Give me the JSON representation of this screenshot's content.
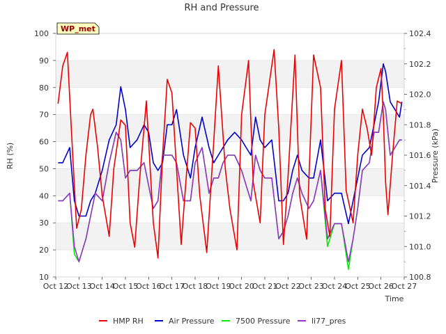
{
  "chart_data": {
    "type": "line",
    "title": "RH and Pressure",
    "xlabel": "Time",
    "ylabel_left": "RH (%)",
    "ylabel_right": "Pressure (kPa)",
    "site_label": "WP_met",
    "grid": "horizontal bands",
    "legend_position": "bottom-center",
    "x_ticks": [
      "Oct 12",
      "Oct 13",
      "Oct 14",
      "Oct 15",
      "Oct 16",
      "Oct 17",
      "Oct 18",
      "Oct 19",
      "Oct 20",
      "Oct 21",
      "Oct 22",
      "Oct 23",
      "Oct 24",
      "Oct 25",
      "Oct 26",
      "Oct 27"
    ],
    "xlim": [
      0,
      15
    ],
    "ylim_left": [
      10,
      100
    ],
    "yticks_left": [
      "10",
      "20",
      "30",
      "40",
      "50",
      "60",
      "70",
      "80",
      "90",
      "100"
    ],
    "ylim_right": [
      100.8,
      102.4
    ],
    "yticks_right": [
      "100.8",
      "101.0",
      "101.2",
      "101.4",
      "101.6",
      "101.8",
      "102.0",
      "102.2",
      "102.4"
    ],
    "series": [
      {
        "name": "HMP RH",
        "axis": "left",
        "color": "#ee0000",
        "x": [
          0.1,
          0.3,
          0.5,
          0.7,
          0.9,
          1.1,
          1.3,
          1.5,
          1.6,
          1.8,
          2.0,
          2.3,
          2.5,
          2.8,
          3.0,
          3.2,
          3.4,
          3.6,
          3.9,
          4.0,
          4.2,
          4.4,
          4.6,
          4.8,
          5.0,
          5.2,
          5.4,
          5.6,
          5.8,
          6.0,
          6.2,
          6.5,
          6.8,
          7.0,
          7.3,
          7.5,
          7.8,
          8.0,
          8.3,
          8.5,
          8.8,
          9.0,
          9.4,
          9.6,
          9.8,
          10.0,
          10.3,
          10.5,
          10.8,
          11.1,
          11.4,
          11.6,
          11.8,
          12.0,
          12.3,
          12.5,
          12.8,
          13.0,
          13.2,
          13.4,
          13.6,
          13.8,
          14.0,
          14.1,
          14.2,
          14.3,
          14.5,
          14.7,
          14.9
        ],
        "y": [
          74,
          88,
          93,
          60,
          28,
          35,
          55,
          70,
          72,
          58,
          40,
          25,
          50,
          68,
          66,
          30,
          21,
          45,
          75,
          60,
          30,
          17,
          55,
          83,
          78,
          50,
          22,
          45,
          67,
          65,
          40,
          19,
          60,
          88,
          50,
          35,
          20,
          70,
          90,
          45,
          30,
          70,
          94,
          65,
          22,
          47,
          92,
          40,
          24,
          92,
          80,
          35,
          25,
          72,
          90,
          42,
          30,
          55,
          72,
          65,
          55,
          80,
          87,
          70,
          45,
          33,
          55,
          75,
          74
        ]
      },
      {
        "name": "Air Pressure",
        "axis": "right",
        "color": "#0000cc",
        "x": [
          0.1,
          0.3,
          0.6,
          0.8,
          1.0,
          1.3,
          1.5,
          1.7,
          2.0,
          2.3,
          2.6,
          2.8,
          3.0,
          3.2,
          3.5,
          3.8,
          4.0,
          4.2,
          4.4,
          4.6,
          4.8,
          5.0,
          5.2,
          5.5,
          5.8,
          6.0,
          6.3,
          6.6,
          6.8,
          7.0,
          7.2,
          7.4,
          7.7,
          8.0,
          8.2,
          8.4,
          8.6,
          8.8,
          9.0,
          9.3,
          9.6,
          9.8,
          10.0,
          10.2,
          10.4,
          10.6,
          10.9,
          11.1,
          11.4,
          11.7,
          12.0,
          12.3,
          12.6,
          12.8,
          13.0,
          13.2,
          13.5,
          13.7,
          13.9,
          14.1,
          14.2,
          14.4,
          14.6,
          14.8,
          14.9
        ],
        "y": [
          101.55,
          101.55,
          101.65,
          101.3,
          101.2,
          101.2,
          101.3,
          101.35,
          101.5,
          101.7,
          101.8,
          102.05,
          101.9,
          101.65,
          101.7,
          101.8,
          101.75,
          101.55,
          101.5,
          101.55,
          101.8,
          101.8,
          101.9,
          101.6,
          101.45,
          101.65,
          101.85,
          101.65,
          101.55,
          101.6,
          101.65,
          101.7,
          101.75,
          101.7,
          101.65,
          101.6,
          101.85,
          101.7,
          101.65,
          101.7,
          101.3,
          101.3,
          101.35,
          101.5,
          101.6,
          101.5,
          101.45,
          101.45,
          101.7,
          101.3,
          101.35,
          101.35,
          101.15,
          101.3,
          101.45,
          101.6,
          101.65,
          101.8,
          101.95,
          102.2,
          102.15,
          101.95,
          101.9,
          101.85,
          101.95
        ]
      },
      {
        "name": "7500 Pressure",
        "axis": "right",
        "color": "#00ee00",
        "x": [
          0.1,
          0.3,
          0.6,
          0.8,
          1.0,
          1.3,
          1.5,
          1.7,
          2.0,
          2.3,
          2.6,
          2.8,
          3.0,
          3.2,
          3.5,
          3.8,
          4.0,
          4.2,
          4.4,
          4.6,
          4.8,
          5.0,
          5.2,
          5.5,
          5.8,
          6.0,
          6.3,
          6.6,
          6.8,
          7.0,
          7.2,
          7.4,
          7.7,
          8.0,
          8.2,
          8.4,
          8.6,
          8.8,
          9.0,
          9.3,
          9.6,
          9.8,
          10.0,
          10.2,
          10.4,
          10.6,
          10.9,
          11.1,
          11.4,
          11.7,
          12.0,
          12.3,
          12.6,
          12.8,
          13.0,
          13.2,
          13.5,
          13.7,
          13.9,
          14.1,
          14.2,
          14.4,
          14.6,
          14.8,
          14.9
        ],
        "y": [
          101.3,
          101.3,
          101.35,
          100.95,
          100.9,
          101.05,
          101.2,
          101.35,
          101.3,
          101.55,
          101.75,
          101.7,
          101.45,
          101.5,
          101.5,
          101.55,
          101.4,
          101.25,
          101.3,
          101.6,
          101.6,
          101.6,
          101.55,
          101.3,
          101.3,
          101.55,
          101.65,
          101.35,
          101.45,
          101.45,
          101.55,
          101.6,
          101.6,
          101.5,
          101.4,
          101.3,
          101.6,
          101.5,
          101.45,
          101.45,
          101.05,
          101.1,
          101.2,
          101.35,
          101.45,
          101.35,
          101.25,
          101.3,
          101.5,
          101.0,
          101.15,
          101.15,
          100.85,
          101.05,
          101.25,
          101.5,
          101.55,
          101.75,
          101.75,
          101.95,
          101.9,
          101.6,
          101.65,
          101.7,
          101.7
        ]
      },
      {
        "name": "li77_pres",
        "axis": "right",
        "color": "#9933cc",
        "x": [
          0.1,
          0.3,
          0.6,
          0.8,
          1.0,
          1.3,
          1.5,
          1.7,
          2.0,
          2.3,
          2.6,
          2.8,
          3.0,
          3.2,
          3.5,
          3.8,
          4.0,
          4.2,
          4.4,
          4.6,
          4.8,
          5.0,
          5.2,
          5.5,
          5.8,
          6.0,
          6.3,
          6.6,
          6.8,
          7.0,
          7.2,
          7.4,
          7.7,
          8.0,
          8.2,
          8.4,
          8.6,
          8.8,
          9.0,
          9.3,
          9.6,
          9.8,
          10.0,
          10.2,
          10.4,
          10.6,
          10.9,
          11.1,
          11.4,
          11.7,
          12.0,
          12.3,
          12.6,
          12.8,
          13.0,
          13.2,
          13.5,
          13.7,
          13.9,
          14.1,
          14.2,
          14.4,
          14.6,
          14.8,
          14.9
        ],
        "y": [
          101.3,
          101.3,
          101.35,
          101.0,
          100.9,
          101.05,
          101.2,
          101.35,
          101.3,
          101.55,
          101.75,
          101.7,
          101.45,
          101.5,
          101.5,
          101.55,
          101.4,
          101.25,
          101.3,
          101.6,
          101.6,
          101.6,
          101.55,
          101.3,
          101.3,
          101.55,
          101.65,
          101.35,
          101.45,
          101.45,
          101.55,
          101.6,
          101.6,
          101.5,
          101.4,
          101.3,
          101.6,
          101.5,
          101.45,
          101.45,
          101.05,
          101.1,
          101.2,
          101.35,
          101.45,
          101.35,
          101.25,
          101.3,
          101.5,
          101.05,
          101.15,
          101.15,
          100.9,
          101.05,
          101.25,
          101.5,
          101.55,
          101.75,
          101.75,
          101.95,
          101.9,
          101.6,
          101.65,
          101.7,
          101.7
        ]
      }
    ]
  }
}
